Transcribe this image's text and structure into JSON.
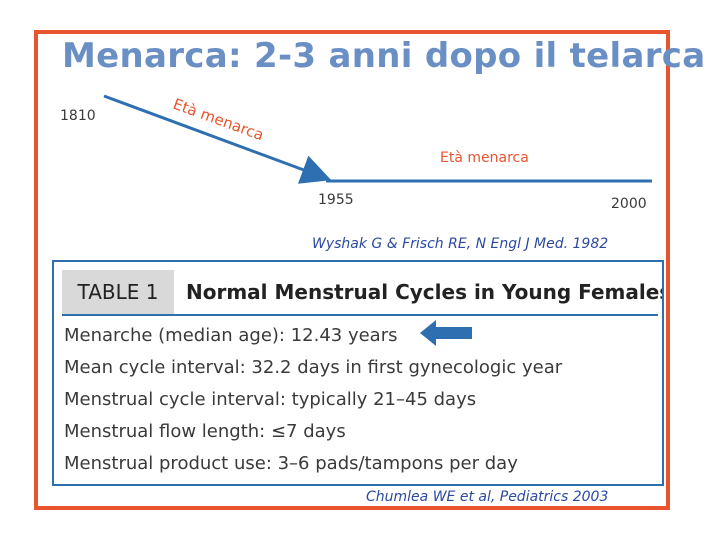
{
  "title": "Menarca: 2-3 anni dopo il telarca",
  "timeline": {
    "years": [
      "1810",
      "1955",
      "2000"
    ],
    "label_decline": "Età menarca",
    "label_stable": "Età menarca",
    "line_color": "#2e6fb2",
    "label_color": "#e8542e"
  },
  "citation_1": "Wyshak G & Frisch RE, N Engl J Med. 1982",
  "table": {
    "tag": "TABLE 1",
    "title": "Normal Menstrual Cycles in Young Females",
    "rows": [
      "Menarche (median age): 12.43 years",
      "Mean cycle interval: 32.2 days in first gynecologic year",
      "Menstrual cycle interval: typically 21–45 days",
      "Menstrual flow length: ≤7 days",
      "Menstrual product use: 3–6 pads/tampons per day"
    ]
  },
  "citation_2": "Chumlea WE et al, Pediatrics 2003",
  "colors": {
    "frame": "#e8542e",
    "title": "#6a8fc4",
    "accent_blue": "#2e6fb2",
    "citation": "#2b4aa0"
  },
  "icons": {
    "pointer": "left-arrow-icon"
  }
}
